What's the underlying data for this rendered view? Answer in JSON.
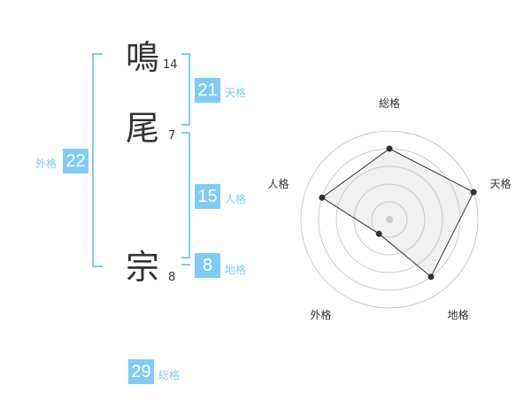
{
  "name": {
    "chars": [
      {
        "char": "鳴",
        "strokes": "14"
      },
      {
        "char": "尾",
        "strokes": "7"
      },
      {
        "char": "宗",
        "strokes": "8"
      }
    ]
  },
  "scores": {
    "tenkaku": {
      "value": "21",
      "label": "天格"
    },
    "jinkaku": {
      "value": "15",
      "label": "人格"
    },
    "chikaku": {
      "value": "8",
      "label": "地格"
    },
    "gaikaku": {
      "value": "22",
      "label": "外格"
    },
    "soukaku": {
      "value": "29",
      "label": "総格"
    }
  },
  "colors": {
    "accent": "#80cbf5",
    "text": "#333333"
  },
  "chart_data": {
    "type": "radar",
    "axes": [
      "総格",
      "天格",
      "地格",
      "外格",
      "人格"
    ],
    "values": [
      4,
      5,
      4,
      1,
      4
    ],
    "range": [
      0,
      5
    ],
    "rings": 5
  }
}
